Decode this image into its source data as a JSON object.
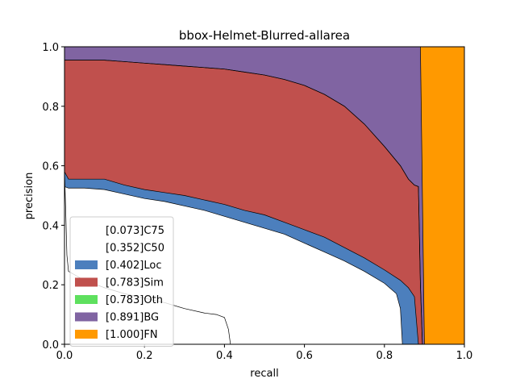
{
  "chart_data": {
    "type": "area",
    "title": "bbox-Helmet-Blurred-allarea",
    "xlabel": "recall",
    "ylabel": "precision",
    "xlim": [
      0,
      1
    ],
    "ylim": [
      0,
      1
    ],
    "x_ticks": [
      "0.0",
      "0.2",
      "0.4",
      "0.6",
      "0.8",
      "1.0"
    ],
    "y_ticks": [
      "0.0",
      "0.2",
      "0.4",
      "0.6",
      "0.8",
      "1.0"
    ],
    "grid": false,
    "legend_position": "lower-left",
    "series": [
      {
        "name": "[0.073]C75",
        "color": "#ffffff",
        "points": [
          [
            0,
            0.58
          ],
          [
            0.003,
            0.45
          ],
          [
            0.006,
            0.3
          ],
          [
            0.01,
            0.245
          ],
          [
            0.03,
            0.23
          ],
          [
            0.05,
            0.215
          ],
          [
            0.1,
            0.19
          ],
          [
            0.15,
            0.17
          ],
          [
            0.2,
            0.155
          ],
          [
            0.25,
            0.14
          ],
          [
            0.3,
            0.12
          ],
          [
            0.35,
            0.105
          ],
          [
            0.38,
            0.1
          ],
          [
            0.4,
            0.09
          ],
          [
            0.41,
            0.05
          ],
          [
            0.415,
            0.0
          ]
        ]
      },
      {
        "name": "[0.352]C50",
        "color": "#ffffff",
        "points": [
          [
            0,
            0.53
          ],
          [
            0.01,
            0.525
          ],
          [
            0.05,
            0.525
          ],
          [
            0.1,
            0.52
          ],
          [
            0.15,
            0.505
          ],
          [
            0.2,
            0.49
          ],
          [
            0.25,
            0.48
          ],
          [
            0.3,
            0.465
          ],
          [
            0.35,
            0.45
          ],
          [
            0.4,
            0.43
          ],
          [
            0.45,
            0.41
          ],
          [
            0.5,
            0.39
          ],
          [
            0.55,
            0.37
          ],
          [
            0.6,
            0.34
          ],
          [
            0.65,
            0.31
          ],
          [
            0.7,
            0.28
          ],
          [
            0.75,
            0.245
          ],
          [
            0.8,
            0.205
          ],
          [
            0.83,
            0.17
          ],
          [
            0.84,
            0.12
          ],
          [
            0.845,
            0.0
          ]
        ]
      },
      {
        "name": "[0.402]Loc",
        "color": "#4c7fbd",
        "points": [
          [
            0,
            0.58
          ],
          [
            0.01,
            0.555
          ],
          [
            0.05,
            0.555
          ],
          [
            0.1,
            0.555
          ],
          [
            0.15,
            0.535
          ],
          [
            0.2,
            0.52
          ],
          [
            0.25,
            0.51
          ],
          [
            0.3,
            0.5
          ],
          [
            0.35,
            0.485
          ],
          [
            0.4,
            0.47
          ],
          [
            0.45,
            0.45
          ],
          [
            0.5,
            0.435
          ],
          [
            0.55,
            0.41
          ],
          [
            0.6,
            0.385
          ],
          [
            0.65,
            0.36
          ],
          [
            0.7,
            0.325
          ],
          [
            0.75,
            0.29
          ],
          [
            0.8,
            0.25
          ],
          [
            0.84,
            0.215
          ],
          [
            0.86,
            0.19
          ],
          [
            0.875,
            0.16
          ],
          [
            0.885,
            0.0
          ]
        ]
      },
      {
        "name": "[0.783]Sim",
        "color": "#c0504d",
        "points": [
          [
            0,
            0.955
          ],
          [
            0.05,
            0.955
          ],
          [
            0.1,
            0.955
          ],
          [
            0.15,
            0.95
          ],
          [
            0.2,
            0.945
          ],
          [
            0.25,
            0.94
          ],
          [
            0.3,
            0.935
          ],
          [
            0.35,
            0.93
          ],
          [
            0.4,
            0.925
          ],
          [
            0.45,
            0.915
          ],
          [
            0.5,
            0.905
          ],
          [
            0.55,
            0.89
          ],
          [
            0.6,
            0.87
          ],
          [
            0.65,
            0.84
          ],
          [
            0.7,
            0.8
          ],
          [
            0.75,
            0.74
          ],
          [
            0.8,
            0.665
          ],
          [
            0.84,
            0.6
          ],
          [
            0.86,
            0.555
          ],
          [
            0.875,
            0.535
          ],
          [
            0.885,
            0.53
          ],
          [
            0.89,
            0.2
          ],
          [
            0.895,
            0.0
          ]
        ]
      },
      {
        "name": "[0.783]Oth",
        "color": "#5ee05e",
        "points": [
          [
            0,
            0.955
          ],
          [
            0.05,
            0.955
          ],
          [
            0.1,
            0.955
          ],
          [
            0.15,
            0.95
          ],
          [
            0.2,
            0.945
          ],
          [
            0.25,
            0.94
          ],
          [
            0.3,
            0.935
          ],
          [
            0.35,
            0.93
          ],
          [
            0.4,
            0.925
          ],
          [
            0.45,
            0.915
          ],
          [
            0.5,
            0.905
          ],
          [
            0.55,
            0.89
          ],
          [
            0.6,
            0.87
          ],
          [
            0.65,
            0.84
          ],
          [
            0.7,
            0.8
          ],
          [
            0.75,
            0.74
          ],
          [
            0.8,
            0.665
          ],
          [
            0.84,
            0.6
          ],
          [
            0.86,
            0.555
          ],
          [
            0.875,
            0.535
          ],
          [
            0.885,
            0.53
          ],
          [
            0.89,
            0.2
          ],
          [
            0.895,
            0.0
          ]
        ]
      },
      {
        "name": "[0.891]BG",
        "color": "#8064a2",
        "points": [
          [
            0,
            1.0
          ],
          [
            0.89,
            1.0
          ],
          [
            0.9,
            0.0
          ]
        ]
      },
      {
        "name": "[1.000]FN",
        "color": "#ff9900",
        "points": [
          [
            0,
            1.0
          ],
          [
            1.0,
            1.0
          ],
          [
            1.0,
            0.0
          ]
        ]
      }
    ]
  }
}
